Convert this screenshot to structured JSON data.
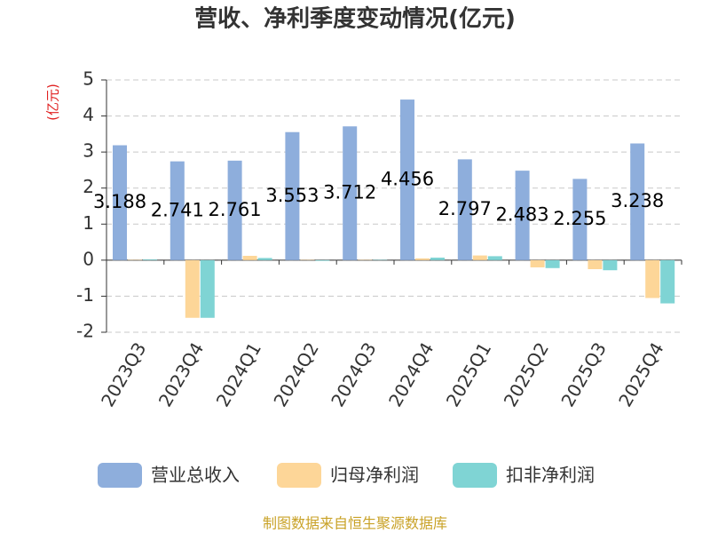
{
  "chart_data": {
    "type": "bar",
    "title": "营收、净利季度变动情况(亿元)",
    "y_label": "(亿元)",
    "categories": [
      "2023Q3",
      "2023Q4",
      "2024Q1",
      "2024Q2",
      "2024Q3",
      "2024Q4",
      "2025Q1",
      "2025Q2",
      "2025Q3",
      "2025Q4"
    ],
    "series": [
      {
        "name": "营业总收入",
        "color": "#8eaedc",
        "values": [
          3.188,
          2.741,
          2.761,
          3.553,
          3.712,
          4.456,
          2.797,
          2.483,
          2.255,
          3.238
        ]
      },
      {
        "name": "归母净利润",
        "color": "#fdd698",
        "values": [
          0.01,
          -1.6,
          0.12,
          0.01,
          0.01,
          0.05,
          0.13,
          -0.2,
          -0.25,
          -1.05
        ]
      },
      {
        "name": "扣非净利润",
        "color": "#7fd4d4",
        "values": [
          0.02,
          -1.6,
          0.06,
          -0.02,
          0.01,
          0.07,
          0.11,
          -0.22,
          -0.28,
          -1.2
        ]
      }
    ],
    "ylim": [
      -2,
      5
    ],
    "yticks": [
      -2,
      -1,
      0,
      1,
      2,
      3,
      4,
      5
    ],
    "grid": true,
    "source": "制图数据来自恒生聚源数据库"
  }
}
